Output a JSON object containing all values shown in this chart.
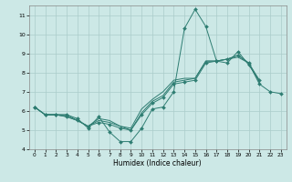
{
  "title": "",
  "xlabel": "Humidex (Indice chaleur)",
  "ylabel": "",
  "bg_color": "#cce8e6",
  "grid_color": "#aaccca",
  "line_color": "#2e7d72",
  "xlim": [
    -0.5,
    23.5
  ],
  "ylim": [
    4,
    11.5
  ],
  "xticks": [
    0,
    1,
    2,
    3,
    4,
    5,
    6,
    7,
    8,
    9,
    10,
    11,
    12,
    13,
    14,
    15,
    16,
    17,
    18,
    19,
    20,
    21,
    22,
    23
  ],
  "yticks": [
    4,
    5,
    6,
    7,
    8,
    9,
    10,
    11
  ],
  "series": [
    {
      "x": [
        0,
        1,
        2,
        3,
        4,
        5,
        6,
        7,
        8,
        9,
        10,
        11,
        12,
        13,
        14,
        15,
        16,
        17,
        18,
        19,
        20,
        21
      ],
      "y": [
        6.2,
        5.8,
        5.8,
        5.8,
        5.6,
        5.1,
        5.7,
        4.9,
        4.4,
        4.4,
        5.1,
        6.1,
        6.2,
        7.0,
        10.3,
        11.3,
        10.4,
        8.6,
        8.5,
        9.1,
        8.4,
        7.6
      ],
      "marker": true
    },
    {
      "x": [
        0,
        1,
        2,
        3,
        4,
        5,
        6,
        7,
        8,
        9,
        10,
        11,
        12,
        13,
        14,
        15,
        16,
        17,
        18,
        19,
        20,
        21
      ],
      "y": [
        6.2,
        5.8,
        5.8,
        5.8,
        5.5,
        5.2,
        5.6,
        5.5,
        5.2,
        5.1,
        6.1,
        6.6,
        7.0,
        7.6,
        7.7,
        7.7,
        8.6,
        8.6,
        8.7,
        8.8,
        8.5,
        7.6
      ],
      "marker": false
    },
    {
      "x": [
        0,
        1,
        2,
        3,
        4,
        5,
        6,
        7,
        8,
        9,
        10,
        11,
        12,
        13,
        14,
        15,
        16,
        17,
        18,
        19,
        20,
        21
      ],
      "y": [
        6.2,
        5.8,
        5.8,
        5.7,
        5.5,
        5.2,
        5.5,
        5.4,
        5.2,
        5.0,
        5.9,
        6.5,
        6.8,
        7.5,
        7.6,
        7.7,
        8.6,
        8.6,
        8.7,
        8.9,
        8.5,
        7.5
      ],
      "marker": false
    },
    {
      "x": [
        0,
        1,
        2,
        3,
        4,
        5,
        6,
        7,
        8,
        9,
        10,
        11,
        12,
        13,
        14,
        15,
        16,
        17,
        18,
        19,
        20,
        21,
        22,
        23
      ],
      "y": [
        6.2,
        5.8,
        5.8,
        5.7,
        5.5,
        5.2,
        5.4,
        5.3,
        5.1,
        5.0,
        5.8,
        6.4,
        6.7,
        7.4,
        7.5,
        7.6,
        8.5,
        8.6,
        8.7,
        8.9,
        8.5,
        7.4,
        7.0,
        6.9
      ],
      "marker": true
    }
  ]
}
